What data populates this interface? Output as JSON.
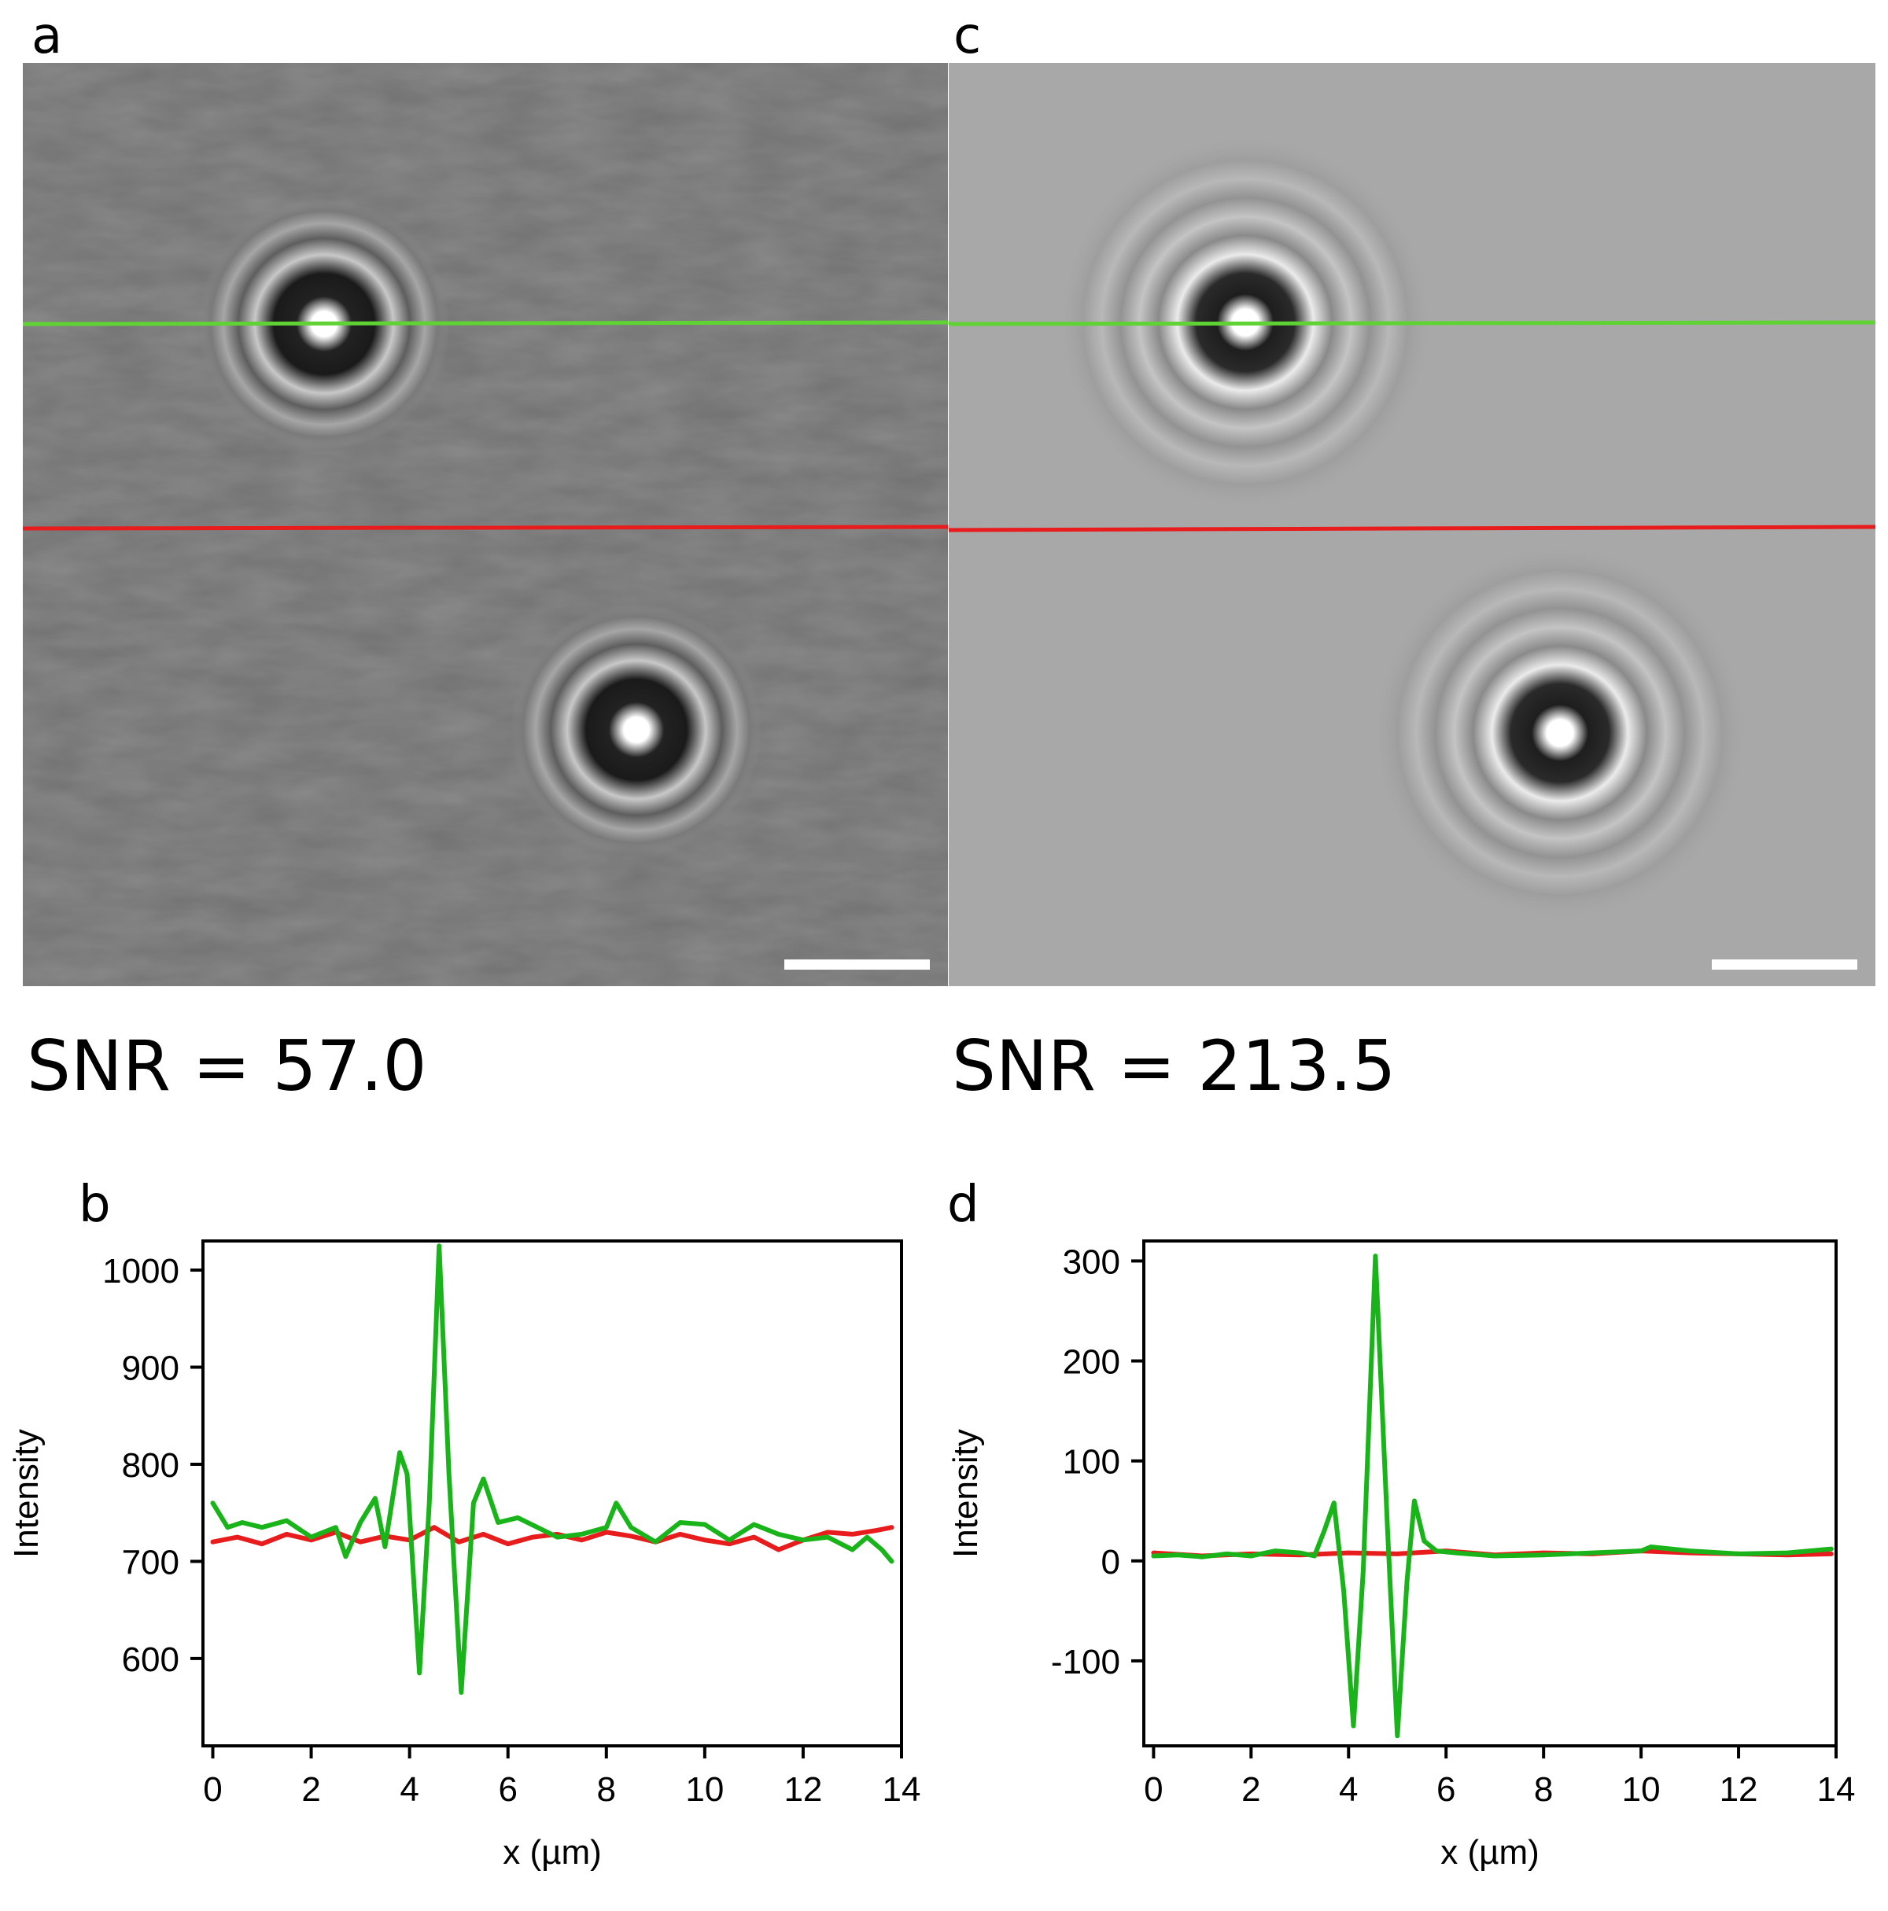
{
  "panels": {
    "a": {
      "letter": "a",
      "snr": "SNR = 57.0"
    },
    "c": {
      "letter": "c",
      "snr": "SNR = 213.5"
    },
    "b": {
      "letter": "b"
    },
    "d": {
      "letter": "d"
    }
  },
  "colors": {
    "green_series": "#19b419",
    "red_series": "#e81c1c",
    "raw_background": "#8a8a8a",
    "processed_background": "#a8a8a8",
    "scale_bar": "#ffffff"
  },
  "chart_data": [
    {
      "type": "line",
      "panel": "b",
      "title": "",
      "xlabel": "x (µm)",
      "ylabel": "Intensity",
      "xlim": [
        -0.2,
        14
      ],
      "ylim": [
        510,
        1030
      ],
      "xticks": [
        0,
        2,
        4,
        6,
        8,
        10,
        12,
        14
      ],
      "yticks": [
        600,
        700,
        800,
        900,
        1000
      ],
      "grid": false,
      "series": [
        {
          "color": "red",
          "x": [
            0,
            0.5,
            1,
            1.5,
            2,
            2.5,
            3,
            3.5,
            4,
            4.5,
            5,
            5.5,
            6,
            6.5,
            7,
            7.5,
            8,
            8.5,
            9,
            9.5,
            10,
            10.5,
            11,
            11.5,
            12,
            12.5,
            13,
            13.5,
            13.8
          ],
          "values": [
            720,
            725,
            718,
            728,
            722,
            730,
            720,
            726,
            722,
            735,
            720,
            728,
            718,
            725,
            728,
            722,
            730,
            726,
            720,
            728,
            722,
            718,
            725,
            712,
            722,
            730,
            728,
            732,
            735
          ]
        },
        {
          "color": "green",
          "x": [
            0,
            0.3,
            0.6,
            1,
            1.5,
            2,
            2.5,
            2.7,
            3,
            3.3,
            3.5,
            3.8,
            3.95,
            4.2,
            4.4,
            4.6,
            4.8,
            5.05,
            5.3,
            5.5,
            5.8,
            6.2,
            6.6,
            7,
            7.5,
            8,
            8.2,
            8.5,
            9,
            9.5,
            10,
            10.5,
            11,
            11.5,
            12,
            12.5,
            13,
            13.3,
            13.6,
            13.8
          ],
          "values": [
            760,
            735,
            740,
            735,
            742,
            725,
            735,
            705,
            740,
            765,
            715,
            812,
            790,
            585,
            760,
            1025,
            790,
            565,
            760,
            785,
            740,
            745,
            735,
            725,
            728,
            735,
            760,
            735,
            720,
            740,
            738,
            722,
            738,
            728,
            722,
            725,
            712,
            725,
            712,
            700
          ]
        }
      ]
    },
    {
      "type": "line",
      "panel": "d",
      "title": "",
      "xlabel": "x (µm)",
      "ylabel": "Intensity",
      "xlim": [
        -0.2,
        14
      ],
      "ylim": [
        -185,
        320
      ],
      "xticks": [
        0,
        2,
        4,
        6,
        8,
        10,
        12,
        14
      ],
      "yticks": [
        -100,
        0,
        100,
        200,
        300
      ],
      "grid": false,
      "series": [
        {
          "color": "red",
          "x": [
            0,
            1,
            2,
            3,
            4,
            5,
            6,
            7,
            8,
            9,
            10,
            11,
            12,
            13,
            13.9
          ],
          "values": [
            8,
            5,
            7,
            6,
            8,
            7,
            10,
            6,
            8,
            7,
            10,
            8,
            7,
            6,
            7
          ]
        },
        {
          "color": "green",
          "x": [
            0,
            0.5,
            1,
            1.5,
            2,
            2.5,
            3,
            3.3,
            3.5,
            3.7,
            3.9,
            4.1,
            4.3,
            4.55,
            4.8,
            5.0,
            5.2,
            5.35,
            5.55,
            5.8,
            6.2,
            7,
            8,
            9,
            10,
            10.2,
            11,
            12,
            13,
            13.9
          ],
          "values": [
            5,
            6,
            4,
            7,
            5,
            10,
            8,
            5,
            30,
            58,
            -30,
            -165,
            -10,
            305,
            30,
            -175,
            -20,
            60,
            20,
            10,
            8,
            5,
            6,
            8,
            10,
            14,
            10,
            7,
            8,
            12
          ]
        }
      ]
    }
  ]
}
